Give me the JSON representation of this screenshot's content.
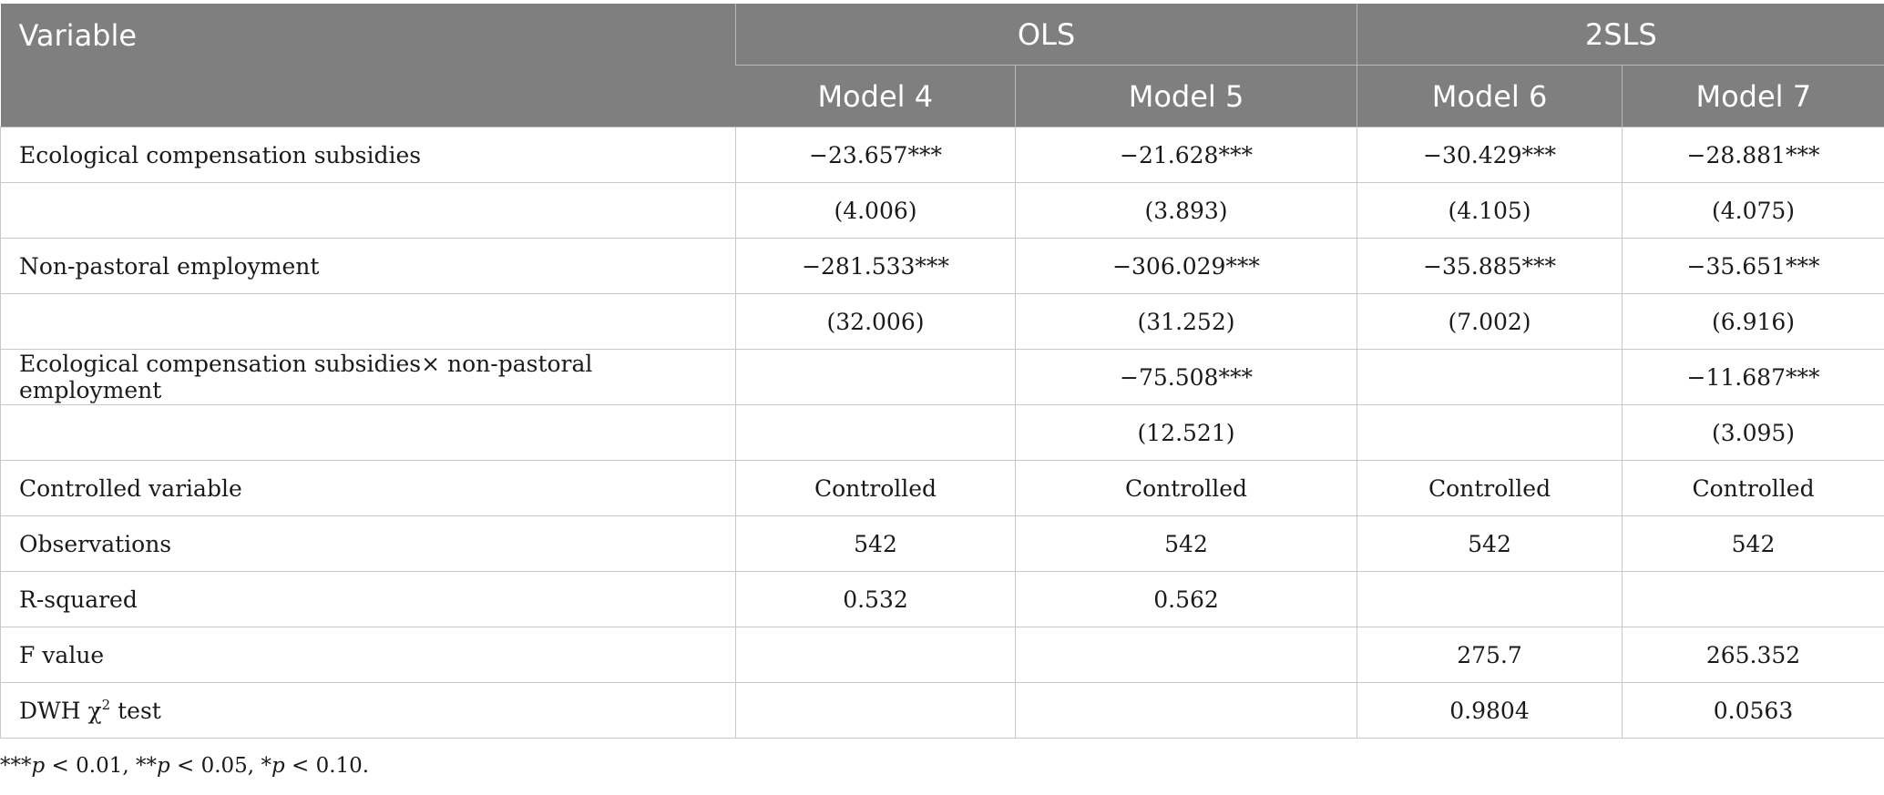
{
  "table": {
    "header": {
      "variable": "Variable",
      "groups": [
        "OLS",
        "2SLS"
      ],
      "models": [
        "Model 4",
        "Model 5",
        "Model 6",
        "Model 7"
      ]
    },
    "rows": [
      {
        "label": "Ecological compensation subsidies",
        "cells": [
          "−23.657***",
          "−21.628***",
          "−30.429***",
          "−28.881***"
        ]
      },
      {
        "label": "",
        "cells": [
          "(4.006)",
          "(3.893)",
          "(4.105)",
          "(4.075)"
        ]
      },
      {
        "label": "Non-pastoral employment",
        "cells": [
          "−281.533***",
          "−306.029***",
          "−35.885***",
          "−35.651***"
        ]
      },
      {
        "label": "",
        "cells": [
          "(32.006)",
          "(31.252)",
          "(7.002)",
          "(6.916)"
        ]
      },
      {
        "label": "Ecological compensation subsidies× non-pastoral employment",
        "cells": [
          "",
          "−75.508***",
          "",
          "−11.687***"
        ]
      },
      {
        "label": "",
        "cells": [
          "",
          "(12.521)",
          "",
          "(3.095)"
        ]
      },
      {
        "label": "Controlled variable",
        "cells": [
          "Controlled",
          "Controlled",
          "Controlled",
          "Controlled"
        ]
      },
      {
        "label": "Observations",
        "cells": [
          "542",
          "542",
          "542",
          "542"
        ]
      },
      {
        "label": "R-squared",
        "cells": [
          "0.532",
          "0.562",
          "",
          ""
        ]
      },
      {
        "label": "F value",
        "cells": [
          "",
          "",
          "275.7",
          "265.352"
        ]
      },
      {
        "label": "DWH χ",
        "label_sup": "2",
        "label_suffix": " test",
        "cells": [
          "",
          "",
          "0.9804",
          "0.0563"
        ]
      }
    ]
  },
  "footnote": {
    "parts": [
      {
        "stars": "***",
        "p": "p",
        "rest": " < 0.01, "
      },
      {
        "stars": "**",
        "p": "p",
        "rest": " < 0.05, "
      },
      {
        "stars": "*",
        "p": "p",
        "rest": " < 0.10."
      }
    ]
  }
}
